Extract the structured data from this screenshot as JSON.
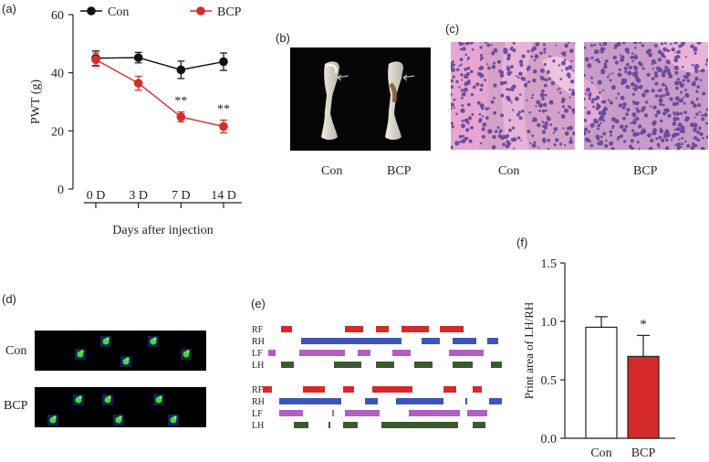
{
  "panel_labels": {
    "a": "(a)",
    "b": "(b)",
    "c": "(c)",
    "d": "(d)",
    "e": "(e)",
    "f": "(f)"
  },
  "colors": {
    "con": "#111111",
    "bcp": "#d62c2c",
    "rf": "#d42a2a",
    "rh": "#3e55b8",
    "lf": "#b35fc2",
    "lh": "#3a5a2e",
    "bar_bcp": "#d42a2a",
    "bar_con": "#ffffff"
  },
  "panel_a": {
    "chart_data": {
      "type": "line",
      "xlabel": "Days after injection",
      "ylabel": "PWT (g)",
      "ylim": [
        0,
        60
      ],
      "yticks": [
        0,
        20,
        40,
        60
      ],
      "categories": [
        "0 D",
        "3 D",
        "7 D",
        "14 D"
      ],
      "series": [
        {
          "name": "Con",
          "values": [
            45.0,
            45.2,
            41.0,
            43.8
          ],
          "errors": [
            2.5,
            1.8,
            3.0,
            3.0
          ]
        },
        {
          "name": "BCP",
          "values": [
            44.5,
            36.4,
            24.8,
            21.5
          ],
          "errors": [
            2.3,
            2.4,
            1.7,
            2.2
          ]
        }
      ],
      "annotations": [
        {
          "category": "7 D",
          "text": "**"
        },
        {
          "category": "14 D",
          "text": "**"
        }
      ],
      "legend": [
        "Con",
        "BCP"
      ]
    }
  },
  "panel_b": {
    "labels": [
      "Con",
      "BCP"
    ]
  },
  "panel_c": {
    "labels": [
      "Con",
      "BCP"
    ]
  },
  "panel_d": {
    "labels": [
      "Con",
      "BCP"
    ]
  },
  "panel_e": {
    "rows": [
      "RF",
      "RH",
      "LF",
      "LH"
    ]
  },
  "panel_f": {
    "chart_data": {
      "type": "bar",
      "title": "",
      "xlabel": "",
      "ylabel": "Print area of LH/RH",
      "ylim": [
        0.0,
        1.5
      ],
      "yticks": [
        "0.0",
        "0.5",
        "1.0",
        "1.5"
      ],
      "categories": [
        "Con",
        "BCP"
      ],
      "values": [
        0.95,
        0.7
      ],
      "errors": [
        0.09,
        0.18
      ],
      "annotations": [
        {
          "category": "BCP",
          "text": "*"
        }
      ]
    }
  }
}
